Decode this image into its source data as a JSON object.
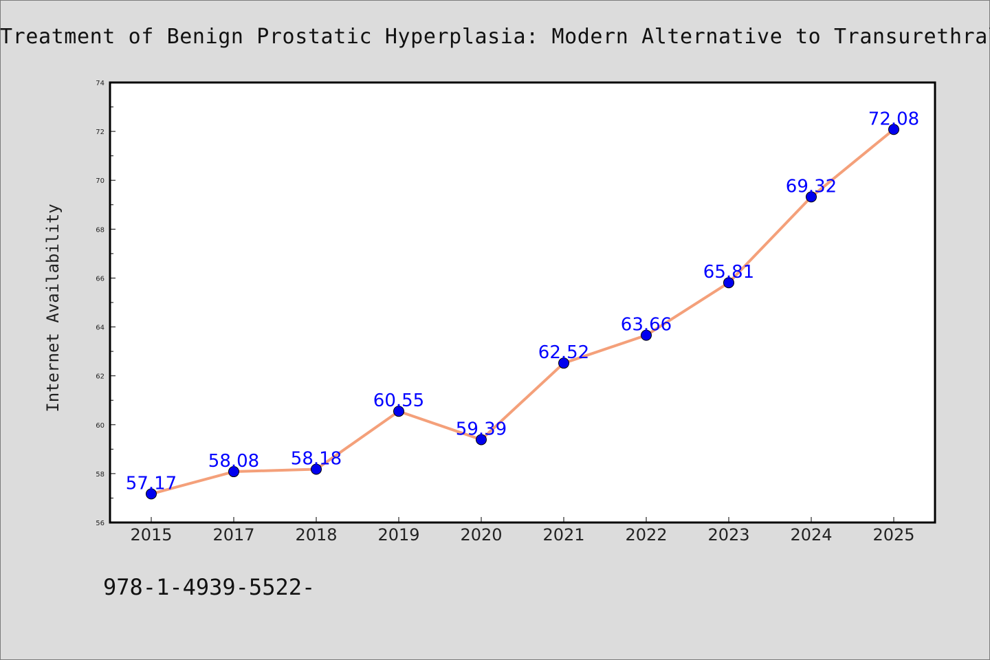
{
  "header": {
    "title": "Treatment of Benign Prostatic Hyperplasia: Modern Alternative to Transurethral R"
  },
  "footer": {
    "text": "978-1-4939-5522-"
  },
  "chart_data": {
    "type": "line",
    "title": "Treatment of Benign Prostatic Hyperplasia: Modern Alternative to Transurethral R",
    "xlabel": "",
    "ylabel": "Internet Availability",
    "categories": [
      "2015",
      "2017",
      "2018",
      "2019",
      "2020",
      "2021",
      "2022",
      "2023",
      "2024",
      "2025"
    ],
    "series": [
      {
        "values": [
          57.17,
          58.08,
          58.18,
          60.55,
          59.39,
          62.52,
          63.66,
          65.81,
          69.32,
          72.08
        ],
        "labels": [
          "57.17",
          "58.08",
          "58.18",
          "60.55",
          "59.39",
          "62.52",
          "63.66",
          "65.81",
          "69.32",
          "72.08"
        ]
      }
    ],
    "ylim": [
      56,
      74
    ],
    "yticks": [
      "56",
      "58",
      "60",
      "62",
      "64",
      "66",
      "68",
      "70",
      "72",
      "74"
    ],
    "grid": false,
    "legend": "none",
    "colors": {
      "line": "#f4a07a",
      "marker": "#0000ee",
      "marker_edge": "#000000",
      "data_label": "#0000ff",
      "plot_bg": "#ffffff",
      "page_bg": "#dcdcdc"
    }
  }
}
